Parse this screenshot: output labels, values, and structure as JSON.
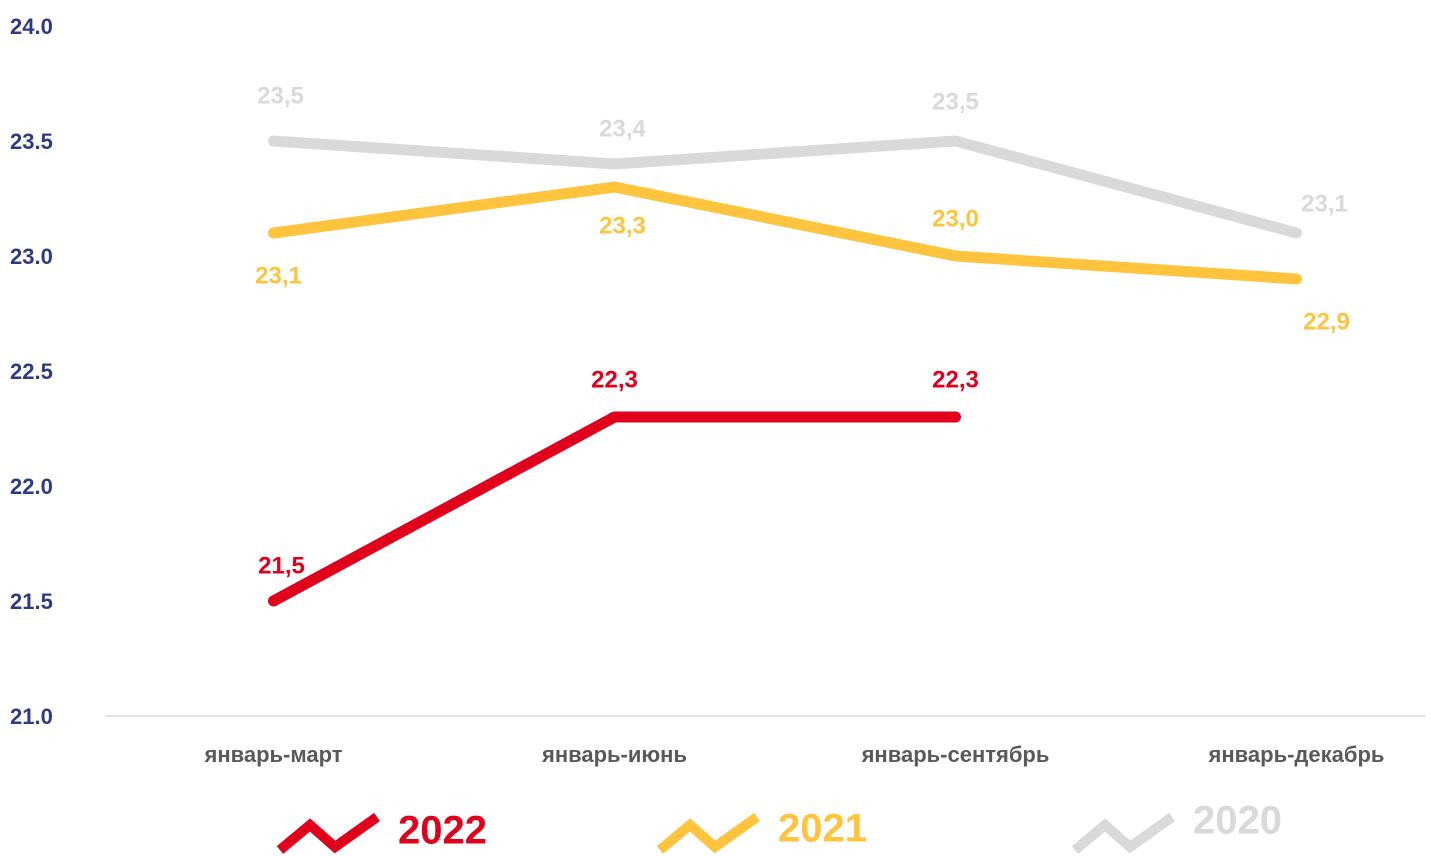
{
  "chart_data": {
    "type": "line",
    "categories": [
      "январь-март",
      "январь-июнь",
      "январь-сентябрь",
      "январь-декабрь"
    ],
    "series": [
      {
        "name": "2022",
        "color": "#e0001b",
        "values": [
          21.5,
          22.3,
          22.3,
          null
        ],
        "value_labels": [
          "21,5",
          "22,3",
          "22,3",
          null
        ]
      },
      {
        "name": "2021",
        "color": "#ffc43d",
        "values": [
          23.1,
          23.3,
          23.0,
          22.9
        ],
        "value_labels": [
          "23,1",
          "23,3",
          "23,0",
          "22,9"
        ]
      },
      {
        "name": "2020",
        "color": "#d9d9d9",
        "values": [
          23.5,
          23.4,
          23.5,
          23.1
        ],
        "value_labels": [
          "23,5",
          "23,4",
          "23,5",
          "23,1"
        ]
      }
    ],
    "ylim": [
      21,
      24
    ],
    "yticks": [
      {
        "value": 21,
        "label": "21.0"
      },
      21.5,
      {
        "value": 22,
        "label": "22.0"
      },
      22.5,
      {
        "value": 23,
        "label": "23.0"
      },
      23.5,
      {
        "value": 24,
        "label": "24.0"
      }
    ],
    "grid": false
  }
}
